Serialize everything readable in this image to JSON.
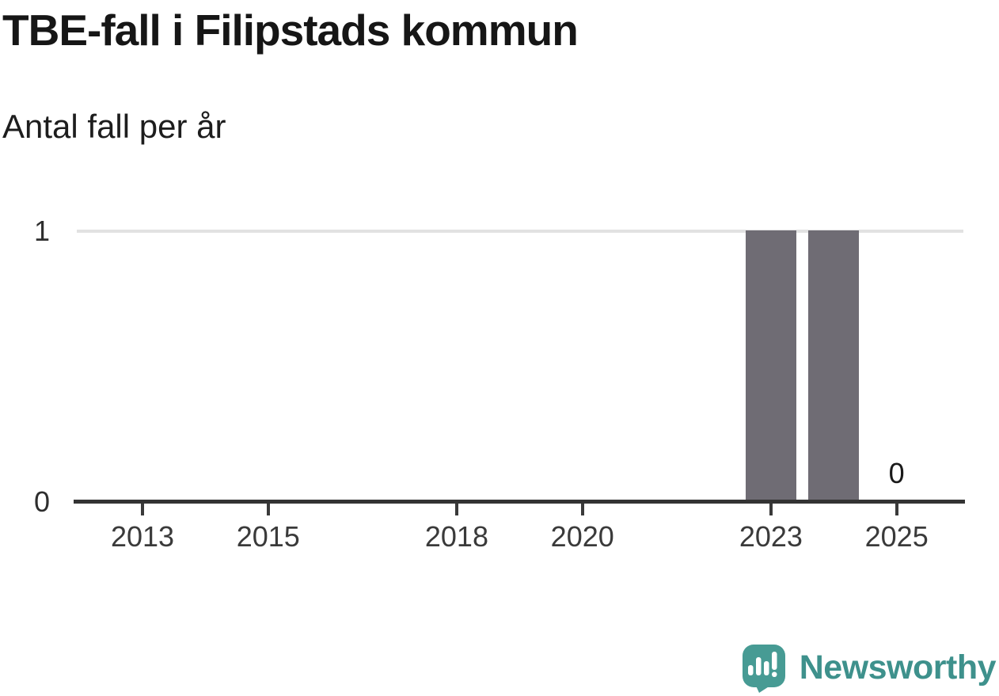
{
  "chart_data": {
    "type": "bar",
    "title": "TBE-fall i Filipstads kommun",
    "subtitle": "Antal fall per år",
    "categories": [
      2013,
      2014,
      2015,
      2016,
      2017,
      2018,
      2019,
      2020,
      2021,
      2022,
      2023,
      2024,
      2025
    ],
    "values": [
      0,
      0,
      0,
      0,
      0,
      0,
      0,
      0,
      0,
      0,
      1,
      1,
      0
    ],
    "ylim": [
      0,
      1
    ],
    "y_tick_labels": [
      "0",
      "1"
    ],
    "x_ticks": [
      {
        "year": 2013,
        "label": "2013"
      },
      {
        "year": 2015,
        "label": "2015"
      },
      {
        "year": 2018,
        "label": "2018"
      },
      {
        "year": 2020,
        "label": "2020"
      },
      {
        "year": 2023,
        "label": "2023"
      },
      {
        "year": 2025,
        "label": "2025"
      }
    ],
    "annotations": [
      {
        "year": 2025,
        "label": "0"
      }
    ],
    "grid": "single horizontal gridline at y=1",
    "legend": "none",
    "colors": {
      "bar": "#6F6C74",
      "axis": "#333333",
      "gridline": "#E2E2E2",
      "tick_text": "#3A3A3A",
      "title_text": "#161616",
      "annotation_text": "#1A1A1A"
    }
  },
  "footer": {
    "brand": "Newsworthy",
    "brand_color": "#3E918C",
    "brand_icon_color": "#479B94"
  }
}
